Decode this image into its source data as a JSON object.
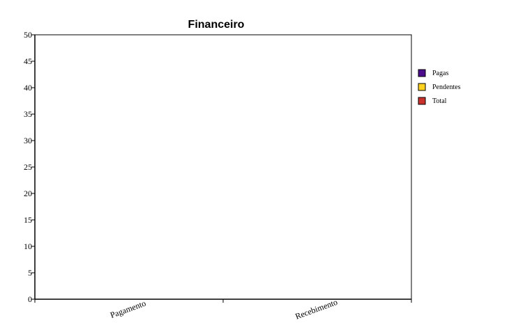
{
  "chart_data": {
    "type": "bar",
    "title": "Financeiro",
    "xlabel": "",
    "ylabel": "",
    "categories": [
      "Pagamento",
      "Recebimento"
    ],
    "series": [
      {
        "name": "Pagas",
        "color": "#4b0d8c",
        "values": [
          0,
          0
        ]
      },
      {
        "name": "Pendentes",
        "color": "#ffd21f",
        "values": [
          0,
          0
        ]
      },
      {
        "name": "Total",
        "color": "#c8312c",
        "values": [
          0,
          0
        ]
      }
    ],
    "ylim": [
      0,
      50
    ],
    "yticks": [
      0,
      5,
      10,
      15,
      20,
      25,
      30,
      35,
      40,
      45,
      50
    ],
    "grid": false,
    "legend_position": "right"
  }
}
